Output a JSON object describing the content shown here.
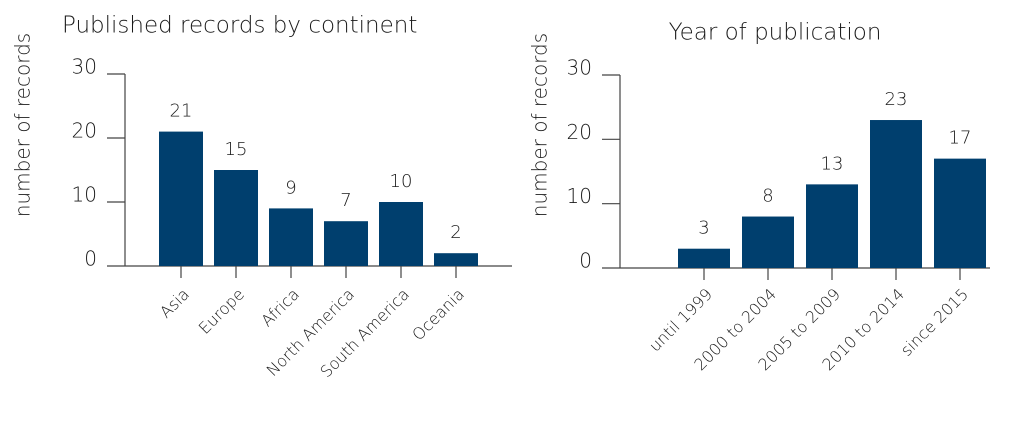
{
  "chart_data": [
    {
      "type": "bar",
      "title": "Published records by continent",
      "y_label": "number of records",
      "categories": [
        "Asia",
        "Europe",
        "Africa",
        "North America",
        "South America",
        "Oceania"
      ],
      "values": [
        21,
        15,
        9,
        7,
        10,
        2
      ],
      "color": "#003f6e",
      "ylim": [
        0,
        30
      ],
      "yticks": [
        0,
        10,
        20,
        30
      ]
    },
    {
      "type": "bar",
      "title": "Year of publication",
      "y_label": "number of records",
      "categories": [
        "until 1999",
        "2000 to 2004",
        "2005 to 2009",
        "2010 to 2014",
        "since 2015"
      ],
      "values": [
        3,
        8,
        13,
        23,
        17
      ],
      "color": "#003f6e",
      "ylim": [
        0,
        30
      ],
      "yticks": [
        0,
        10,
        20,
        30
      ]
    }
  ]
}
